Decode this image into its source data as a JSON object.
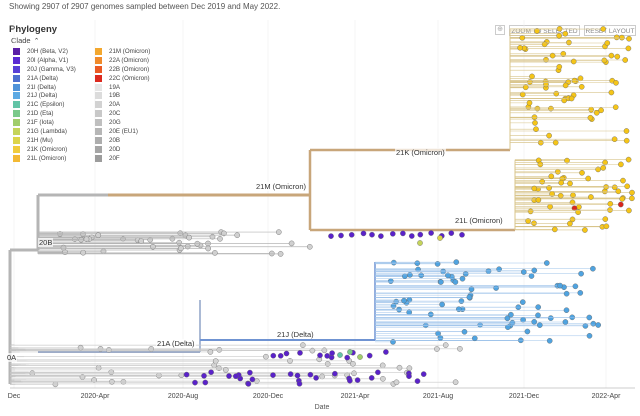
{
  "summary": "Showing 2907 of 2907 genomes sampled between Dec 2019 and May 2022.",
  "panel": {
    "title": "Phylogeny",
    "clade_label": "Clade",
    "zoom_label": "ZOOM TO SELECTED",
    "reset_label": "RESET LAYOUT"
  },
  "legend_col1": [
    {
      "label": "20H (Beta, V2)",
      "color": "#5a1fa6"
    },
    {
      "label": "20I (Alpha, V1)",
      "color": "#5b2bd3"
    },
    {
      "label": "20J (Gamma, V3)",
      "color": "#5840d6"
    },
    {
      "label": "21A (Delta)",
      "color": "#4d70cf"
    },
    {
      "label": "21I (Delta)",
      "color": "#4f93d9"
    },
    {
      "label": "21J (Delta)",
      "color": "#5ca9e3"
    },
    {
      "label": "21C (Epsilon)",
      "color": "#62c4a6"
    },
    {
      "label": "21D (Eta)",
      "color": "#7ac98a"
    },
    {
      "label": "21F (Iota)",
      "color": "#a0cd6b"
    },
    {
      "label": "21G (Lambda)",
      "color": "#c5d45a"
    },
    {
      "label": "21H (Mu)",
      "color": "#dcd54a"
    },
    {
      "label": "21K (Omicron)",
      "color": "#f0cc3c"
    },
    {
      "label": "21L (Omicron)",
      "color": "#f3b933"
    }
  ],
  "legend_col2": [
    {
      "label": "21M (Omicron)",
      "color": "#f3a72e"
    },
    {
      "label": "22A (Omicron)",
      "color": "#f08a2a"
    },
    {
      "label": "22B (Omicron)",
      "color": "#ea5a24"
    },
    {
      "label": "22C (Omicron)",
      "color": "#dc2a1f"
    },
    {
      "label": "19A",
      "color": "#e6e6e6"
    },
    {
      "label": "19B",
      "color": "#dcdcdc"
    },
    {
      "label": "20A",
      "color": "#d2d2d2"
    },
    {
      "label": "20C",
      "color": "#c8c8c8"
    },
    {
      "label": "20G",
      "color": "#bfbfbf"
    },
    {
      "label": "20E (EU1)",
      "color": "#b6b6b6"
    },
    {
      "label": "20B",
      "color": "#adadad"
    },
    {
      "label": "20D",
      "color": "#a5a5a5"
    },
    {
      "label": "20F",
      "color": "#9c9c9c"
    }
  ],
  "branch_labels": {
    "k21": "21K (Omicron)",
    "m21": "21M (Omicron)",
    "l21": "21L (Omicron)",
    "b20": "20B",
    "j21": "21J (Delta)",
    "a21": "21A (Delta)",
    "oa": "0A"
  },
  "x_axis": {
    "label": "Date",
    "ticks": [
      "Dec",
      "2020-Apr",
      "2020-Aug",
      "2020-Dec",
      "2021-Apr",
      "2021-Aug",
      "2021-Dec",
      "2022-Apr"
    ]
  },
  "colors": {
    "omicron_yellow": "#f5c518",
    "delta_blue": "#4fa3e0",
    "alpha_purple": "#5a22c9",
    "omicron_red": "#d8261c",
    "branch_gray": "#b5b5b5",
    "branch_tan": "#c8a67a"
  }
}
